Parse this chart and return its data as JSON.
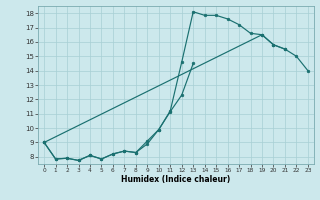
{
  "xlabel": "Humidex (Indice chaleur)",
  "xlim": [
    -0.5,
    23.5
  ],
  "ylim": [
    7.5,
    18.5
  ],
  "xticks": [
    0,
    1,
    2,
    3,
    4,
    5,
    6,
    7,
    8,
    9,
    10,
    11,
    12,
    13,
    14,
    15,
    16,
    17,
    18,
    19,
    20,
    21,
    22,
    23
  ],
  "yticks": [
    8,
    9,
    10,
    11,
    12,
    13,
    14,
    15,
    16,
    17,
    18
  ],
  "bg_color": "#cce8ec",
  "line_color": "#1a7070",
  "grid_color": "#a8cfd4",
  "line1_x": [
    0,
    1,
    2,
    3,
    4,
    5,
    6,
    7,
    8,
    9,
    10,
    11,
    12,
    13,
    14,
    15,
    16,
    17,
    18,
    19,
    20,
    21
  ],
  "line1_y": [
    9.0,
    7.85,
    7.9,
    7.75,
    8.1,
    7.85,
    8.2,
    8.4,
    8.3,
    8.9,
    9.9,
    11.2,
    14.6,
    18.1,
    17.85,
    17.85,
    17.6,
    17.2,
    16.6,
    16.5,
    15.8,
    15.5
  ],
  "line2_x": [
    0,
    1,
    2,
    3,
    4,
    5,
    6,
    7,
    8,
    9,
    10,
    11,
    12,
    13
  ],
  "line2_y": [
    9.0,
    7.85,
    7.9,
    7.75,
    8.1,
    7.85,
    8.2,
    8.4,
    8.3,
    9.1,
    9.9,
    11.15,
    12.3,
    14.5
  ],
  "line3_x": [
    0,
    19,
    20,
    21,
    22,
    23
  ],
  "line3_y": [
    9.0,
    16.5,
    15.8,
    15.5,
    15.0,
    14.0
  ]
}
